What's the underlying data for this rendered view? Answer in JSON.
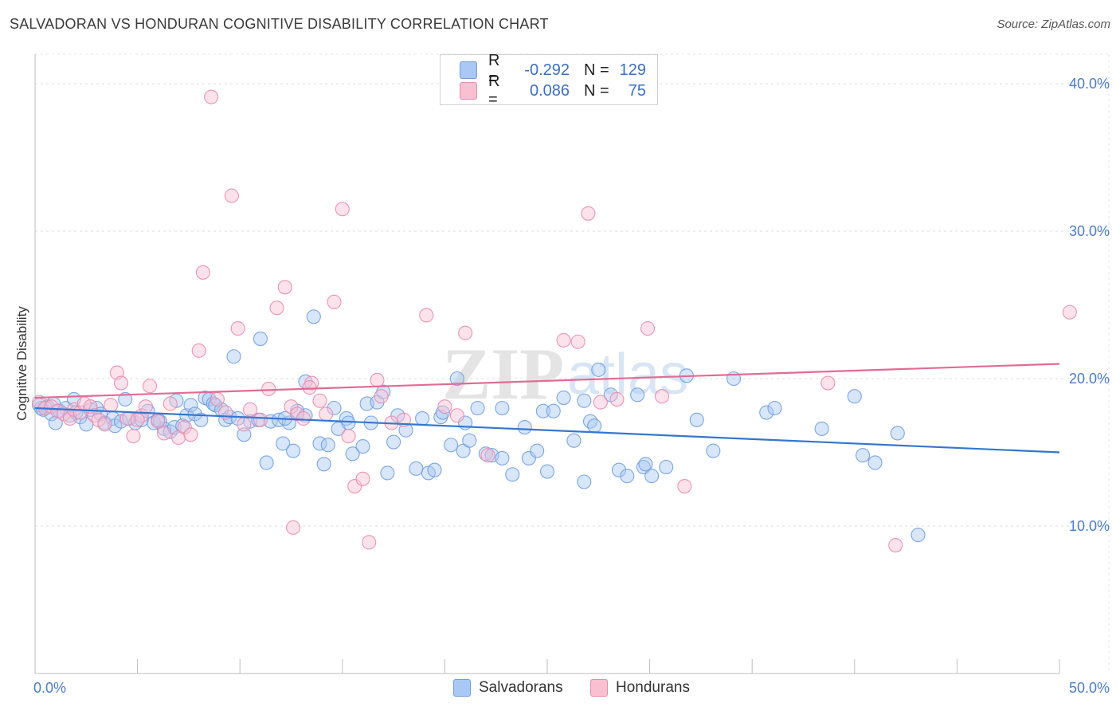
{
  "header": {
    "title": "SALVADORAN VS HONDURAN COGNITIVE DISABILITY CORRELATION CHART",
    "source": "Source: ZipAtlas.com"
  },
  "watermark": {
    "zip": "ZIP",
    "atlas": "atlas"
  },
  "legend": {
    "rows": [
      {
        "r_label": "R =",
        "r_value": "-0.292",
        "n_label": "N =",
        "n_value": "129",
        "color": "#a9c8f5",
        "border": "#6f9de0"
      },
      {
        "r_label": "R =",
        "r_value": "0.086",
        "n_label": "N =",
        "n_value": "75",
        "color": "#f9c0d2",
        "border": "#ea8aab"
      }
    ]
  },
  "bottom_legend": [
    {
      "label": "Salvadorans",
      "color": "#a9c8f5",
      "border": "#6f9de0"
    },
    {
      "label": "Hondurans",
      "color": "#f9c0d2",
      "border": "#ea8aab"
    }
  ],
  "chart_data": {
    "type": "scatter",
    "title": "SALVADORAN VS HONDURAN COGNITIVE DISABILITY CORRELATION CHART",
    "ylabel": "Cognitive Disability",
    "xlabel": "",
    "xlim": [
      0,
      50
    ],
    "ylim": [
      0,
      42
    ],
    "x_tick_labels": [
      "0.0%",
      "50.0%"
    ],
    "y_ticks": [
      10,
      20,
      30,
      40
    ],
    "y_tick_labels": [
      "10.0%",
      "20.0%",
      "30.0%",
      "40.0%"
    ],
    "grid": true,
    "legend_position": "top-center",
    "series": [
      {
        "name": "Salvadorans",
        "color": "#a9c8f5",
        "stroke": "#6f9de0",
        "trend": {
          "x": [
            0,
            50
          ],
          "y": [
            18.0,
            15.0
          ],
          "color": "#3476d2"
        },
        "points": [
          [
            0.2,
            18.2
          ],
          [
            0.4,
            17.9
          ],
          [
            0.6,
            18.1
          ],
          [
            0.8,
            17.6
          ],
          [
            1.0,
            17.0
          ],
          [
            1.2,
            17.8
          ],
          [
            1.5,
            18.0
          ],
          [
            1.7,
            17.5
          ],
          [
            1.9,
            18.6
          ],
          [
            2.2,
            17.4
          ],
          [
            2.5,
            16.9
          ],
          [
            2.7,
            17.9
          ],
          [
            3.0,
            18.0
          ],
          [
            3.2,
            17.6
          ],
          [
            3.4,
            17.0
          ],
          [
            3.8,
            17.3
          ],
          [
            3.9,
            16.8
          ],
          [
            4.2,
            17.1
          ],
          [
            4.4,
            18.6
          ],
          [
            4.6,
            17.3
          ],
          [
            4.9,
            17.0
          ],
          [
            5.2,
            17.2
          ],
          [
            5.5,
            17.8
          ],
          [
            5.8,
            17.0
          ],
          [
            6.1,
            17.1
          ],
          [
            6.3,
            16.6
          ],
          [
            6.6,
            16.4
          ],
          [
            6.8,
            16.7
          ],
          [
            6.9,
            18.5
          ],
          [
            7.2,
            16.8
          ],
          [
            7.4,
            17.5
          ],
          [
            7.6,
            18.2
          ],
          [
            7.8,
            17.6
          ],
          [
            8.1,
            17.2
          ],
          [
            8.3,
            18.7
          ],
          [
            8.5,
            18.6
          ],
          [
            8.7,
            18.3
          ],
          [
            8.8,
            18.2
          ],
          [
            9.1,
            17.9
          ],
          [
            9.3,
            17.2
          ],
          [
            9.5,
            17.4
          ],
          [
            9.7,
            21.5
          ],
          [
            9.9,
            17.3
          ],
          [
            10.2,
            16.2
          ],
          [
            10.5,
            17.1
          ],
          [
            10.9,
            17.2
          ],
          [
            11.0,
            22.7
          ],
          [
            11.3,
            14.3
          ],
          [
            11.5,
            17.1
          ],
          [
            11.9,
            17.2
          ],
          [
            12.1,
            15.6
          ],
          [
            12.4,
            17.0
          ],
          [
            12.6,
            15.1
          ],
          [
            12.8,
            17.8
          ],
          [
            13.2,
            17.5
          ],
          [
            13.2,
            19.8
          ],
          [
            13.6,
            24.2
          ],
          [
            13.9,
            15.6
          ],
          [
            14.1,
            14.2
          ],
          [
            14.3,
            15.5
          ],
          [
            14.6,
            18.0
          ],
          [
            14.8,
            16.6
          ],
          [
            15.2,
            17.3
          ],
          [
            15.3,
            17.0
          ],
          [
            15.5,
            14.9
          ],
          [
            16.0,
            15.4
          ],
          [
            16.2,
            18.3
          ],
          [
            16.4,
            17.0
          ],
          [
            16.7,
            18.4
          ],
          [
            17.0,
            19.1
          ],
          [
            17.2,
            13.6
          ],
          [
            17.5,
            15.7
          ],
          [
            17.7,
            17.5
          ],
          [
            18.1,
            16.5
          ],
          [
            18.6,
            13.9
          ],
          [
            18.9,
            17.3
          ],
          [
            19.2,
            13.6
          ],
          [
            19.5,
            13.8
          ],
          [
            19.8,
            17.4
          ],
          [
            19.9,
            17.7
          ],
          [
            20.3,
            15.5
          ],
          [
            20.6,
            20.0
          ],
          [
            20.9,
            15.1
          ],
          [
            21.0,
            17.0
          ],
          [
            21.2,
            15.8
          ],
          [
            21.6,
            18.0
          ],
          [
            22.0,
            14.9
          ],
          [
            22.3,
            14.8
          ],
          [
            22.8,
            18.0
          ],
          [
            22.8,
            14.6
          ],
          [
            23.3,
            13.5
          ],
          [
            23.9,
            16.7
          ],
          [
            24.1,
            14.6
          ],
          [
            24.5,
            15.1
          ],
          [
            24.8,
            17.8
          ],
          [
            25.0,
            13.7
          ],
          [
            25.3,
            17.8
          ],
          [
            25.8,
            18.7
          ],
          [
            26.3,
            15.8
          ],
          [
            26.8,
            13.0
          ],
          [
            26.8,
            18.5
          ],
          [
            27.1,
            17.1
          ],
          [
            27.3,
            16.8
          ],
          [
            27.5,
            20.6
          ],
          [
            28.1,
            18.9
          ],
          [
            28.5,
            13.8
          ],
          [
            28.9,
            13.4
          ],
          [
            29.4,
            18.9
          ],
          [
            29.7,
            14.0
          ],
          [
            29.8,
            14.2
          ],
          [
            30.1,
            13.4
          ],
          [
            30.8,
            14.0
          ],
          [
            31.8,
            20.2
          ],
          [
            32.3,
            17.2
          ],
          [
            33.1,
            15.1
          ],
          [
            34.1,
            20.0
          ],
          [
            35.7,
            17.7
          ],
          [
            36.1,
            18.0
          ],
          [
            38.4,
            16.6
          ],
          [
            40.0,
            18.8
          ],
          [
            40.4,
            14.8
          ],
          [
            41.0,
            14.3
          ],
          [
            42.1,
            16.3
          ],
          [
            43.1,
            9.4
          ],
          [
            0.3,
            18.0
          ],
          [
            0.9,
            18.3
          ],
          [
            2.0,
            17.7
          ],
          [
            6.0,
            17.2
          ],
          [
            12.2,
            17.3
          ]
        ]
      },
      {
        "name": "Hondurans",
        "color": "#f9c0d2",
        "stroke": "#ea8aab",
        "trend": {
          "x": [
            0,
            50
          ],
          "y": [
            18.7,
            21.0
          ],
          "color": "#e46a93"
        },
        "points": [
          [
            0.2,
            18.4
          ],
          [
            0.5,
            18.0
          ],
          [
            0.8,
            18.1
          ],
          [
            1.1,
            17.8
          ],
          [
            1.4,
            17.6
          ],
          [
            1.7,
            17.3
          ],
          [
            1.9,
            17.9
          ],
          [
            2.2,
            17.7
          ],
          [
            2.4,
            18.3
          ],
          [
            2.7,
            18.1
          ],
          [
            2.9,
            17.5
          ],
          [
            3.1,
            17.2
          ],
          [
            3.4,
            16.9
          ],
          [
            3.7,
            18.2
          ],
          [
            4.0,
            20.4
          ],
          [
            4.2,
            19.7
          ],
          [
            4.5,
            17.3
          ],
          [
            4.8,
            16.1
          ],
          [
            5.2,
            17.5
          ],
          [
            5.4,
            18.1
          ],
          [
            5.6,
            19.5
          ],
          [
            6.0,
            17.1
          ],
          [
            6.3,
            16.3
          ],
          [
            6.6,
            18.3
          ],
          [
            7.0,
            16.0
          ],
          [
            7.3,
            16.7
          ],
          [
            7.6,
            16.2
          ],
          [
            8.0,
            21.9
          ],
          [
            8.2,
            27.2
          ],
          [
            8.6,
            39.1
          ],
          [
            8.9,
            18.6
          ],
          [
            9.3,
            17.7
          ],
          [
            9.6,
            32.4
          ],
          [
            9.9,
            23.4
          ],
          [
            10.2,
            16.9
          ],
          [
            10.5,
            17.9
          ],
          [
            11.0,
            17.2
          ],
          [
            11.4,
            19.3
          ],
          [
            11.8,
            24.8
          ],
          [
            12.2,
            26.2
          ],
          [
            12.5,
            18.1
          ],
          [
            12.8,
            17.6
          ],
          [
            13.1,
            17.3
          ],
          [
            13.5,
            19.7
          ],
          [
            13.9,
            18.5
          ],
          [
            14.2,
            17.6
          ],
          [
            14.6,
            25.2
          ],
          [
            15.0,
            31.5
          ],
          [
            15.3,
            16.1
          ],
          [
            15.6,
            12.7
          ],
          [
            16.0,
            13.2
          ],
          [
            16.3,
            8.9
          ],
          [
            16.7,
            19.9
          ],
          [
            16.9,
            18.8
          ],
          [
            17.4,
            17.0
          ],
          [
            18.0,
            17.2
          ],
          [
            19.1,
            24.3
          ],
          [
            20.0,
            18.1
          ],
          [
            20.6,
            17.5
          ],
          [
            21.0,
            23.1
          ],
          [
            22.1,
            14.8
          ],
          [
            25.8,
            22.6
          ],
          [
            26.5,
            22.5
          ],
          [
            27.0,
            31.2
          ],
          [
            27.6,
            18.4
          ],
          [
            28.4,
            18.6
          ],
          [
            29.9,
            23.4
          ],
          [
            30.6,
            18.8
          ],
          [
            31.7,
            12.7
          ],
          [
            38.7,
            19.7
          ],
          [
            12.6,
            9.9
          ],
          [
            13.4,
            19.4
          ],
          [
            42.0,
            8.7
          ],
          [
            50.5,
            24.5
          ],
          [
            5.0,
            17.2
          ]
        ]
      }
    ]
  }
}
